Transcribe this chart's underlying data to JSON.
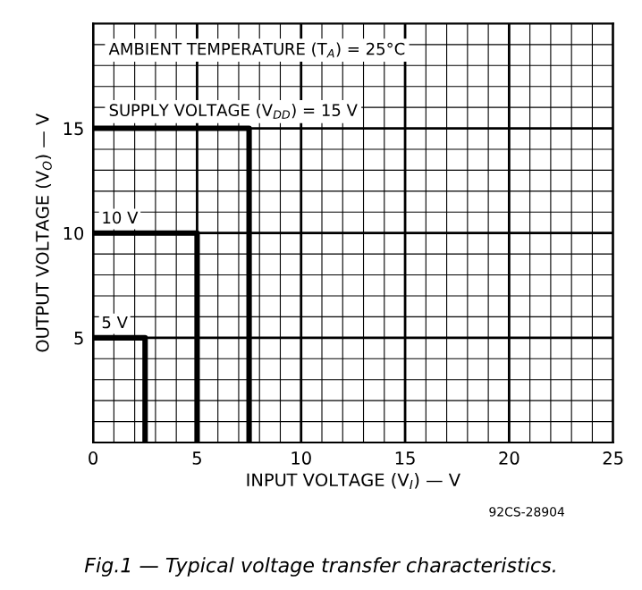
{
  "chart_data": {
    "type": "line",
    "title": "Fig.1 — Typical voltage transfer characteristics.",
    "xlabel": "INPUT VOLTAGE (V$_{I}$) — V",
    "ylabel": "OUTPUT VOLTAGE (V$_{O}$) — V",
    "series": [
      {
        "name": "5 V",
        "color": "#000000",
        "x": [
          0,
          2.5,
          2.5
        ],
        "values": [
          5,
          5,
          0
        ]
      },
      {
        "name": "10 V",
        "color": "#000000",
        "x": [
          0,
          5,
          5
        ],
        "values": [
          10,
          10,
          0
        ]
      },
      {
        "color": "#000000",
        "x": [
          0,
          7.5,
          7.5
        ],
        "values": [
          15,
          15,
          0
        ]
      }
    ],
    "annotations": [
      "AMBIENT TEMPERATURE (T$_{A}$) = 25°C",
      "SUPPLY VOLTAGE (V$_{DD}$) = 15 V",
      "92CS-28904"
    ],
    "xlim": [
      0,
      25
    ],
    "ylim": [
      0,
      20
    ],
    "xticks": [
      0,
      5,
      10,
      15,
      20,
      25
    ],
    "yticks": [
      5,
      10,
      15
    ],
    "grid": true,
    "legend": false,
    "marker": "none",
    "line_style": "solid"
  }
}
